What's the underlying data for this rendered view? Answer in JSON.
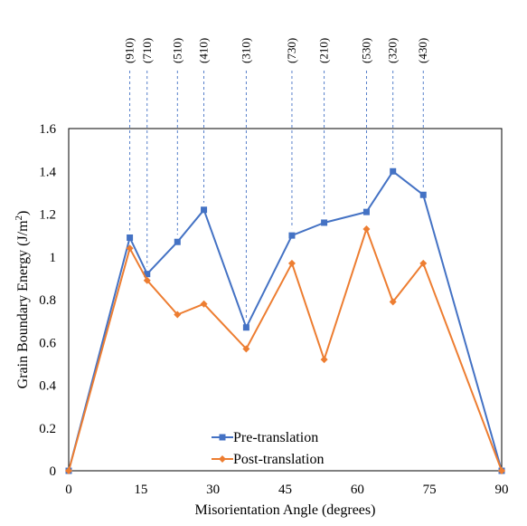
{
  "chart_data": {
    "type": "line",
    "title": "",
    "xlabel": "Misorientation Angle (degrees)",
    "ylabel_main": "Grain Boundary Energy (J/m",
    "ylabel_sup": "2",
    "ylabel_close": ")",
    "xlim": [
      0,
      90
    ],
    "ylim": [
      0,
      1.6
    ],
    "xticks": [
      0,
      15,
      30,
      45,
      60,
      75,
      90
    ],
    "xtick_labels": [
      "0",
      "15",
      "30",
      "45",
      "60",
      "75",
      "90"
    ],
    "yticks": [
      0,
      0.2,
      0.4,
      0.6,
      0.8,
      1.0,
      1.2,
      1.4,
      1.6
    ],
    "ytick_labels": [
      "0",
      "0.2",
      "0.4",
      "0.6",
      "0.8",
      "1",
      "1.2",
      "1.4",
      "1.6"
    ],
    "grid": false,
    "legend_position": "bottom-center",
    "series": [
      {
        "name": "Pre-translation",
        "color": "#4472C4",
        "marker": "square",
        "x": [
          0,
          12.7,
          16.3,
          22.6,
          28.1,
          36.9,
          46.4,
          53.1,
          61.9,
          67.4,
          73.7,
          90
        ],
        "y": [
          0,
          1.09,
          0.92,
          1.07,
          1.22,
          0.67,
          1.1,
          1.16,
          1.21,
          1.4,
          1.29,
          0
        ]
      },
      {
        "name": "Post-translation",
        "color": "#ED7D31",
        "marker": "diamond",
        "x": [
          0,
          12.7,
          16.3,
          22.6,
          28.1,
          36.9,
          46.4,
          53.1,
          61.9,
          67.4,
          73.7,
          90
        ],
        "y": [
          0,
          1.04,
          0.89,
          0.73,
          0.78,
          0.57,
          0.97,
          0.52,
          1.13,
          0.79,
          0.97,
          0
        ]
      }
    ],
    "annotations": [
      {
        "label": "(910)",
        "x": 12.7,
        "y_end": 1.09
      },
      {
        "label": "(710)",
        "x": 16.3,
        "y_end": 0.92
      },
      {
        "label": "(510)",
        "x": 22.6,
        "y_end": 1.07
      },
      {
        "label": "(410)",
        "x": 28.1,
        "y_end": 1.22
      },
      {
        "label": "(310)",
        "x": 36.9,
        "y_end": 0.67
      },
      {
        "label": "(730)",
        "x": 46.4,
        "y_end": 1.1
      },
      {
        "label": "(210)",
        "x": 53.1,
        "y_end": 1.16
      },
      {
        "label": "(530)",
        "x": 61.9,
        "y_end": 1.21
      },
      {
        "label": "(320)",
        "x": 67.4,
        "y_end": 1.4
      },
      {
        "label": "(430)",
        "x": 73.7,
        "y_end": 1.29
      }
    ]
  }
}
